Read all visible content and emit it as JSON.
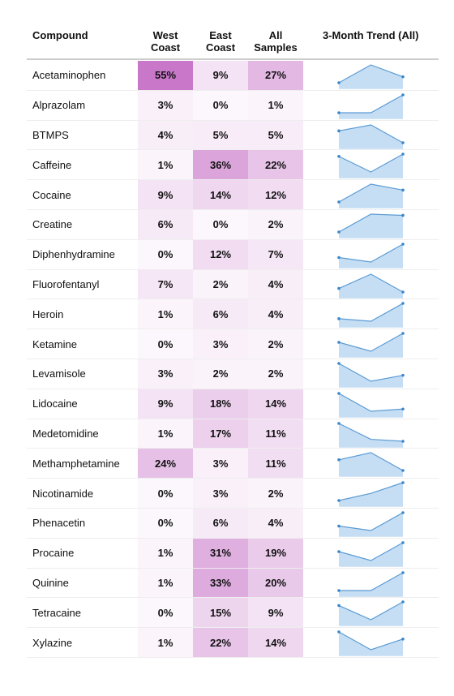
{
  "table": {
    "headers": [
      "Compound",
      "West Coast",
      "East Coast",
      "All Samples",
      "3-Month Trend (All)"
    ],
    "rows": [
      {
        "compound": "Acetaminophen",
        "west": {
          "value": 55,
          "label": "55%"
        },
        "east": {
          "value": 9,
          "label": "9%"
        },
        "all": {
          "value": 27,
          "label": "27%"
        },
        "trend": [
          20,
          35,
          25
        ]
      },
      {
        "compound": "Alprazolam",
        "west": {
          "value": 3,
          "label": "3%"
        },
        "east": {
          "value": 0,
          "label": "0%"
        },
        "all": {
          "value": 1,
          "label": "1%"
        },
        "trend": [
          0,
          0,
          2
        ]
      },
      {
        "compound": "BTMPS",
        "west": {
          "value": 4,
          "label": "4%"
        },
        "east": {
          "value": 5,
          "label": "5%"
        },
        "all": {
          "value": 5,
          "label": "5%"
        },
        "trend": [
          5,
          6,
          3
        ]
      },
      {
        "compound": "Caffeine",
        "west": {
          "value": 1,
          "label": "1%"
        },
        "east": {
          "value": 36,
          "label": "36%"
        },
        "all": {
          "value": 22,
          "label": "22%"
        },
        "trend": [
          25,
          18,
          26
        ]
      },
      {
        "compound": "Cocaine",
        "west": {
          "value": 9,
          "label": "9%"
        },
        "east": {
          "value": 14,
          "label": "14%"
        },
        "all": {
          "value": 12,
          "label": "12%"
        },
        "trend": [
          8,
          14,
          12
        ]
      },
      {
        "compound": "Creatine",
        "west": {
          "value": 6,
          "label": "6%"
        },
        "east": {
          "value": 0,
          "label": "0%"
        },
        "all": {
          "value": 2,
          "label": "2%"
        },
        "trend": [
          0,
          3,
          2.8
        ]
      },
      {
        "compound": "Diphenhydramine",
        "west": {
          "value": 0,
          "label": "0%"
        },
        "east": {
          "value": 12,
          "label": "12%"
        },
        "all": {
          "value": 7,
          "label": "7%"
        },
        "trend": [
          6,
          5,
          9
        ]
      },
      {
        "compound": "Fluorofentanyl",
        "west": {
          "value": 7,
          "label": "7%"
        },
        "east": {
          "value": 2,
          "label": "2%"
        },
        "all": {
          "value": 4,
          "label": "4%"
        },
        "trend": [
          4,
          6,
          3.5
        ]
      },
      {
        "compound": "Heroin",
        "west": {
          "value": 1,
          "label": "1%"
        },
        "east": {
          "value": 6,
          "label": "6%"
        },
        "all": {
          "value": 4,
          "label": "4%"
        },
        "trend": [
          3,
          2.5,
          6
        ]
      },
      {
        "compound": "Ketamine",
        "west": {
          "value": 0,
          "label": "0%"
        },
        "east": {
          "value": 3,
          "label": "3%"
        },
        "all": {
          "value": 2,
          "label": "2%"
        },
        "trend": [
          2,
          1,
          3
        ]
      },
      {
        "compound": "Levamisole",
        "west": {
          "value": 3,
          "label": "3%"
        },
        "east": {
          "value": 2,
          "label": "2%"
        },
        "all": {
          "value": 2,
          "label": "2%"
        },
        "trend": [
          4,
          1,
          2
        ]
      },
      {
        "compound": "Lidocaine",
        "west": {
          "value": 9,
          "label": "9%"
        },
        "east": {
          "value": 18,
          "label": "18%"
        },
        "all": {
          "value": 14,
          "label": "14%"
        },
        "trend": [
          20,
          12,
          13
        ]
      },
      {
        "compound": "Medetomidine",
        "west": {
          "value": 1,
          "label": "1%"
        },
        "east": {
          "value": 17,
          "label": "17%"
        },
        "all": {
          "value": 11,
          "label": "11%"
        },
        "trend": [
          17,
          9,
          8
        ]
      },
      {
        "compound": "Methamphetamine",
        "west": {
          "value": 24,
          "label": "24%"
        },
        "east": {
          "value": 3,
          "label": "3%"
        },
        "all": {
          "value": 11,
          "label": "11%"
        },
        "trend": [
          11,
          13,
          8
        ]
      },
      {
        "compound": "Nicotinamide",
        "west": {
          "value": 0,
          "label": "0%"
        },
        "east": {
          "value": 3,
          "label": "3%"
        },
        "all": {
          "value": 2,
          "label": "2%"
        },
        "trend": [
          1,
          2,
          3.5
        ]
      },
      {
        "compound": "Phenacetin",
        "west": {
          "value": 0,
          "label": "0%"
        },
        "east": {
          "value": 6,
          "label": "6%"
        },
        "all": {
          "value": 4,
          "label": "4%"
        },
        "trend": [
          3,
          2,
          6
        ]
      },
      {
        "compound": "Procaine",
        "west": {
          "value": 1,
          "label": "1%"
        },
        "east": {
          "value": 31,
          "label": "31%"
        },
        "all": {
          "value": 19,
          "label": "19%"
        },
        "trend": [
          18,
          14,
          22
        ]
      },
      {
        "compound": "Quinine",
        "west": {
          "value": 1,
          "label": "1%"
        },
        "east": {
          "value": 33,
          "label": "33%"
        },
        "all": {
          "value": 20,
          "label": "20%"
        },
        "trend": [
          2,
          2,
          12
        ]
      },
      {
        "compound": "Tetracaine",
        "west": {
          "value": 0,
          "label": "0%"
        },
        "east": {
          "value": 15,
          "label": "15%"
        },
        "all": {
          "value": 9,
          "label": "9%"
        },
        "trend": [
          9,
          5,
          10
        ]
      },
      {
        "compound": "Xylazine",
        "west": {
          "value": 1,
          "label": "1%"
        },
        "east": {
          "value": 22,
          "label": "22%"
        },
        "all": {
          "value": 14,
          "label": "14%"
        },
        "trend": [
          20,
          10,
          16
        ]
      }
    ]
  }
}
